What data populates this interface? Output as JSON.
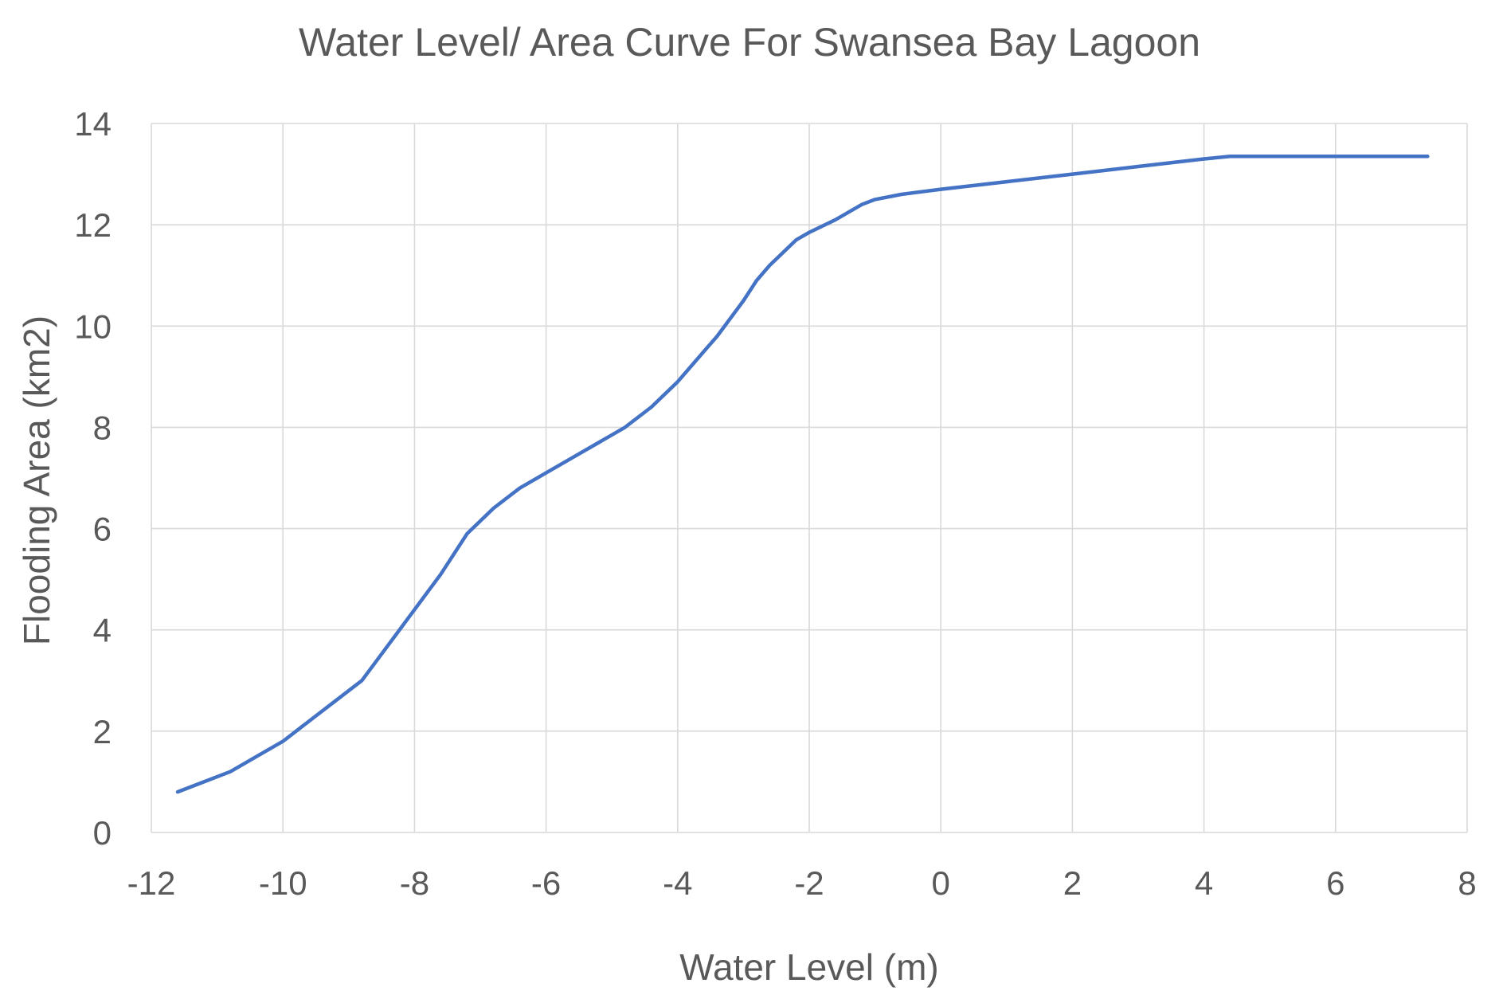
{
  "chart_data": {
    "type": "line",
    "title": "Water Level/ Area Curve For Swansea Bay Lagoon",
    "xlabel": "Water Level (m)",
    "ylabel": "Flooding Area (km2)",
    "xlim": [
      -12,
      8
    ],
    "ylim": [
      0,
      14
    ],
    "xticks": [
      -12,
      -10,
      -8,
      -6,
      -4,
      -2,
      0,
      2,
      4,
      6,
      8
    ],
    "yticks": [
      0,
      2,
      4,
      6,
      8,
      10,
      12,
      14
    ],
    "grid": true,
    "series": [
      {
        "name": "Water Level/ Area",
        "color": "#4472c4",
        "x": [
          -11.6,
          -11.2,
          -10.8,
          -10.4,
          -10.0,
          -9.6,
          -9.2,
          -8.8,
          -8.4,
          -8.0,
          -7.6,
          -7.2,
          -6.8,
          -6.6,
          -6.4,
          -6.0,
          -5.6,
          -5.2,
          -4.8,
          -4.4,
          -4.0,
          -3.8,
          -3.4,
          -3.0,
          -2.8,
          -2.6,
          -2.2,
          -2.0,
          -1.6,
          -1.2,
          -1.0,
          -0.6,
          0.0,
          1.0,
          2.0,
          3.0,
          4.0,
          4.4,
          5.0,
          6.0,
          7.4
        ],
        "y": [
          0.8,
          1.0,
          1.2,
          1.5,
          1.8,
          2.2,
          2.6,
          3.0,
          3.7,
          4.4,
          5.1,
          5.9,
          6.4,
          6.6,
          6.8,
          7.1,
          7.4,
          7.7,
          8.0,
          8.4,
          8.9,
          9.2,
          9.8,
          10.5,
          10.9,
          11.2,
          11.7,
          11.85,
          12.1,
          12.4,
          12.5,
          12.6,
          12.7,
          12.85,
          13.0,
          13.15,
          13.3,
          13.35,
          13.35,
          13.35,
          13.35
        ]
      }
    ]
  }
}
